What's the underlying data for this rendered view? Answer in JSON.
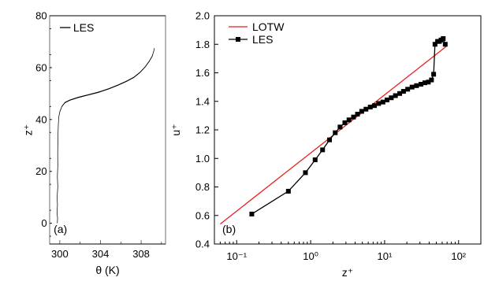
{
  "chart_data": [
    {
      "type": "line",
      "panel_label": "(a)",
      "xlabel": "θ (K)",
      "ylabel": "z⁺",
      "xlim": [
        299.0,
        310.4
      ],
      "ylim": [
        -8,
        80
      ],
      "xticks": [
        300,
        304,
        308
      ],
      "yticks": [
        0,
        20,
        40,
        60,
        80
      ],
      "legend": {
        "position": "top-left",
        "entries": [
          "LES"
        ]
      },
      "series": [
        {
          "name": "LES",
          "color": "#000000",
          "x": [
            299.75,
            299.78,
            299.72,
            299.77,
            299.74,
            299.8,
            299.76,
            299.8,
            299.79,
            299.8,
            299.82,
            299.85,
            299.9,
            300.0,
            300.2,
            300.5,
            301.0,
            301.8,
            302.8,
            303.8,
            304.8,
            305.7,
            306.6,
            307.3,
            307.9,
            308.4,
            308.8,
            309.1,
            309.25,
            309.3
          ],
          "y": [
            0,
            2,
            4,
            7,
            10,
            14,
            18,
            22,
            26,
            30,
            34,
            38,
            41,
            43,
            45,
            46.5,
            47.5,
            48.5,
            49.5,
            50.5,
            51.8,
            53.2,
            54.8,
            56.3,
            58.2,
            60.3,
            62.5,
            64.5,
            66.5,
            67.5
          ]
        }
      ]
    },
    {
      "type": "line",
      "panel_label": "(b)",
      "xlabel": "z⁺",
      "ylabel": "u⁺",
      "xscale": "log",
      "xlim": [
        0.05,
        200
      ],
      "ylim": [
        0.4,
        2.0
      ],
      "xticks": [
        "10⁻¹",
        "10⁰",
        "10¹",
        "10²"
      ],
      "yticks": [
        0.4,
        0.6,
        0.8,
        1.0,
        1.2,
        1.4,
        1.6,
        1.8,
        2.0
      ],
      "legend": {
        "position": "top-left",
        "entries": [
          "LOTW",
          "LES"
        ]
      },
      "series": [
        {
          "name": "LOTW",
          "color": "#e8201a",
          "x": [
            0.06,
            70
          ],
          "y": [
            0.54,
            1.79
          ]
        },
        {
          "name": "LES",
          "color": "#000000",
          "marker": "square",
          "x": [
            0.16,
            0.5,
            0.85,
            1.15,
            1.45,
            1.8,
            2.15,
            2.5,
            2.9,
            3.3,
            3.8,
            4.3,
            4.9,
            5.6,
            6.4,
            7.3,
            8.3,
            9.5,
            10.8,
            12.3,
            14,
            16,
            18,
            20.5,
            23.5,
            27,
            31,
            35,
            39,
            43,
            46,
            48,
            52,
            55,
            58,
            62,
            66
          ],
          "y": [
            0.61,
            0.77,
            0.9,
            0.99,
            1.06,
            1.13,
            1.18,
            1.22,
            1.25,
            1.27,
            1.29,
            1.31,
            1.33,
            1.345,
            1.36,
            1.37,
            1.385,
            1.395,
            1.41,
            1.425,
            1.44,
            1.455,
            1.47,
            1.485,
            1.5,
            1.51,
            1.52,
            1.53,
            1.535,
            1.55,
            1.59,
            1.8,
            1.82,
            1.82,
            1.83,
            1.84,
            1.8
          ]
        }
      ]
    }
  ]
}
